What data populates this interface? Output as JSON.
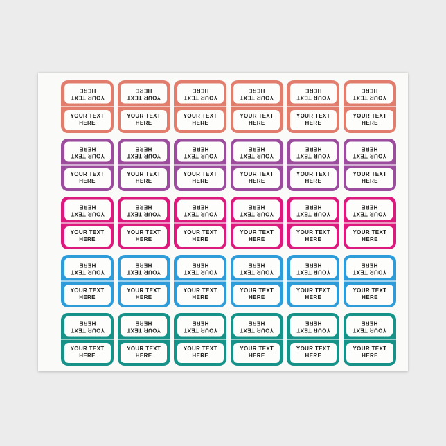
{
  "page": {
    "background_color": "#ECECEC",
    "sheet_color": "#FAFAF9",
    "panel_color": "#FDFDFC",
    "text_color": "#1D1D1D",
    "fold_line_color": "rgba(255,255,255,0.55)"
  },
  "sheet": {
    "columns": 6,
    "rows": [
      {
        "name": "coral-row",
        "color": "#E07D6D"
      },
      {
        "name": "purple-row",
        "color": "#9C4C9D"
      },
      {
        "name": "pink-row",
        "color": "#DC1A7D"
      },
      {
        "name": "blue-row",
        "color": "#2E9CD9"
      },
      {
        "name": "teal-row",
        "color": "#179289"
      }
    ],
    "label": {
      "line1": "YOUR TEXT",
      "line2": "HERE",
      "top_half_rotated": true
    }
  }
}
